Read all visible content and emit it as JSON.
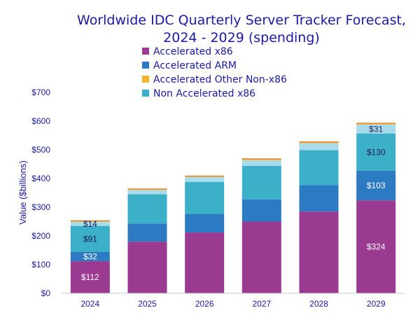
{
  "chart_data": {
    "type": "bar",
    "stacked": true,
    "title_lines": [
      "Worldwide IDC Quarterly Server Tracker Forecast,",
      "2024 - 2029 (spending)"
    ],
    "ylabel": "Value ($billions)",
    "ylim": [
      0,
      700
    ],
    "yticks": [
      "$0",
      "$100",
      "$200",
      "$300",
      "$400",
      "$500",
      "$600",
      "$700"
    ],
    "categories": [
      "2024",
      "2025",
      "2026",
      "2027",
      "2028",
      "2029"
    ],
    "series": [
      {
        "name": "Accelerated x86",
        "color": "#9b3a91",
        "values": [
          112,
          180,
          212,
          250,
          285,
          324
        ]
      },
      {
        "name": "Accelerated ARM",
        "color": "#2c7bc2",
        "values": [
          32,
          63,
          65,
          77,
          92,
          103
        ]
      },
      {
        "name": "Non Accelerated x86",
        "color": "#3cb0c9",
        "values": [
          91,
          102,
          111,
          117,
          122,
          130
        ]
      },
      {
        "name": "Other (light segment)",
        "color": "#a8dcea",
        "values": [
          14,
          15,
          17,
          20,
          24,
          31
        ],
        "in_legend": false
      },
      {
        "name": "Accelerated Other Non-x86",
        "color": "#f2b42a",
        "values": [
          2,
          2,
          2,
          3,
          3,
          3
        ]
      },
      {
        "name": "Top segment (orange)",
        "color": "#e8722a",
        "values": [
          3,
          3,
          3,
          3,
          3,
          3
        ],
        "in_legend": false
      }
    ],
    "legend": [
      {
        "name": "Accelerated x86",
        "color": "#9b3a91"
      },
      {
        "name": "Accelerated ARM",
        "color": "#2c7bc2"
      },
      {
        "name": "Accelerated Other Non-x86",
        "color": "#f2b42a"
      },
      {
        "name": "Non Accelerated x86",
        "color": "#3cb0c9"
      }
    ],
    "legend_position": "top-center",
    "grid": false,
    "data_labels": [
      {
        "category_index": 0,
        "series_index": 0,
        "text": "$112",
        "color": "#ffffff"
      },
      {
        "category_index": 0,
        "series_index": 1,
        "text": "$32",
        "color": "#ffffff"
      },
      {
        "category_index": 0,
        "series_index": 2,
        "text": "$91",
        "color": "#1a1a5a"
      },
      {
        "category_index": 0,
        "series_index": 3,
        "text": "$14",
        "color": "#1a1a5a"
      },
      {
        "category_index": 5,
        "series_index": 0,
        "text": "$324",
        "color": "#ffffff"
      },
      {
        "category_index": 5,
        "series_index": 1,
        "text": "$103",
        "color": "#ffffff"
      },
      {
        "category_index": 5,
        "series_index": 2,
        "text": "$130",
        "color": "#1a1a5a"
      },
      {
        "category_index": 5,
        "series_index": 3,
        "text": "$31",
        "color": "#1a1a5a"
      }
    ],
    "axis_color": "#1a1aa6"
  }
}
